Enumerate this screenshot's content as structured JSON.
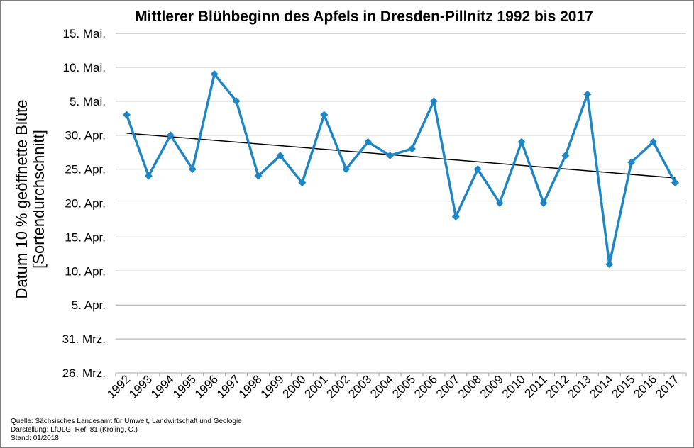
{
  "chart_data": {
    "type": "line",
    "title": "Mittlerer  Blühbeginn  des Apfels  in Dresden-Pillnitz  1992 bis 2017",
    "ylabel_line1": "Datum 10 % geöffnette Blüte",
    "ylabel_line2": "[Sortendurchschnitt]",
    "xlabel": "",
    "y_unit": "day of year",
    "ylim": [
      85,
      135
    ],
    "yticks": [
      {
        "value": 85,
        "label": "26. Mrz."
      },
      {
        "value": 90,
        "label": "31. Mrz."
      },
      {
        "value": 95,
        "label": "5. Apr."
      },
      {
        "value": 100,
        "label": "10. Apr."
      },
      {
        "value": 105,
        "label": "15. Apr."
      },
      {
        "value": 110,
        "label": "20. Apr."
      },
      {
        "value": 115,
        "label": "25. Apr."
      },
      {
        "value": 120,
        "label": "30. Apr."
      },
      {
        "value": 125,
        "label": "5. Mai."
      },
      {
        "value": 130,
        "label": "10. Mai."
      },
      {
        "value": 135,
        "label": "15. Mai."
      }
    ],
    "grid": true,
    "categories": [
      "1992",
      "1993",
      "1994",
      "1995",
      "1996",
      "1997",
      "1998",
      "1999",
      "2000",
      "2001",
      "2002",
      "2003",
      "2004",
      "2005",
      "2006",
      "2007",
      "2008",
      "2009",
      "2010",
      "2011",
      "2012",
      "2013",
      "2014",
      "2015",
      "2016",
      "2017"
    ],
    "series": [
      {
        "values": [
          123,
          114,
          120,
          115,
          129,
          125,
          114,
          117,
          113,
          123,
          115,
          119,
          117,
          118,
          125,
          108,
          115,
          110,
          119,
          110,
          117,
          126,
          101,
          116,
          119,
          113
        ],
        "color": "#1f86c6",
        "marker": "diamond"
      }
    ],
    "trendline": {
      "start": 120.3,
      "end": 113.7,
      "color": "#000000"
    }
  },
  "footer": {
    "source": "Quelle:  Sächsisches Landesamt für Umwelt, Landwirtschaft und Geologie",
    "credit": "Darstellung: LfULG, Ref. 81 (Kröling, C.)",
    "date": "Stand: 01/2018"
  }
}
